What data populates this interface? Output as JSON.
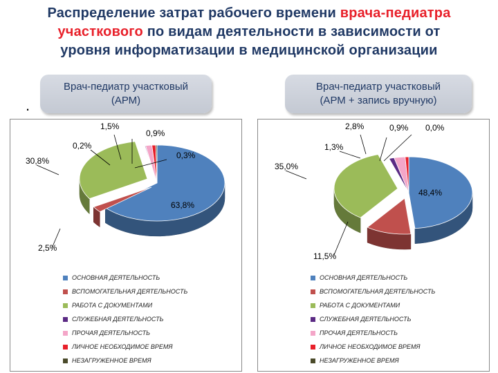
{
  "title": {
    "part1": "Распределение затрат рабочего времени ",
    "highlight1": "врача-педиатра",
    "highlight2": "участкового",
    "part2": " по видам деятельности в зависимости от",
    "line3": "уровня информатизации в медицинской организации"
  },
  "side_mark": ".",
  "colors": {
    "main": "#4f81bd",
    "aux": "#c0504d",
    "docs": "#9bbb59",
    "service": "#5b2a84",
    "other": "#f4a6c8",
    "personal": "#e8202a",
    "idle": "#4a4a2a"
  },
  "legend": [
    {
      "key": "main",
      "label": "ОСНОВНАЯ ДЕЯТЕЛЬНОСТЬ"
    },
    {
      "key": "aux",
      "label": "ВСПОМОГАТЕЛЬНАЯ ДЕЯТЕЛЬНОСТЬ"
    },
    {
      "key": "docs",
      "label": "РАБОТА С ДОКУМЕНТАМИ"
    },
    {
      "key": "service",
      "label": "СЛУЖЕБНАЯ ДЕЯТЕЛЬНОСТЬ"
    },
    {
      "key": "other",
      "label": "ПРОЧАЯ ДЕЯТЕЛЬНОСТЬ"
    },
    {
      "key": "personal",
      "label": "ЛИЧНОЕ НЕОБХОДИМОЕ ВРЕМЯ"
    },
    {
      "key": "idle",
      "label": "НЕЗАГРУЖЕННОЕ ВРЕМЯ"
    }
  ],
  "chart_data": [
    {
      "type": "pie",
      "title": "Врач-педиатр участковый\n(АРМ)",
      "categories": [
        "ОСНОВНАЯ ДЕЯТЕЛЬНОСТЬ",
        "ВСПОМОГАТЕЛЬНАЯ ДЕЯТЕЛЬНОСТЬ",
        "РАБОТА С ДОКУМЕНТАМИ",
        "СЛУЖЕБНАЯ ДЕЯТЕЛЬНОСТЬ",
        "ПРОЧАЯ ДЕЯТЕЛЬНОСТЬ",
        "ЛИЧНОЕ НЕОБХОДИМОЕ ВРЕМЯ",
        "НЕЗАГРУЖЕННОЕ ВРЕМЯ"
      ],
      "values": [
        63.8,
        2.5,
        30.8,
        0.2,
        1.5,
        0.9,
        0.3
      ],
      "labels": [
        "63,8%",
        "2,5%",
        "30,8%",
        "0,2%",
        "1,5%",
        "0,9%",
        "0,3%"
      ],
      "legend_position": "bottom"
    },
    {
      "type": "pie",
      "title": "Врач-педиатр участковый\n(АРМ + запись вручную)",
      "categories": [
        "ОСНОВНАЯ ДЕЯТЕЛЬНОСТЬ",
        "ВСПОМОГАТЕЛЬНАЯ ДЕЯТЕЛЬНОСТЬ",
        "РАБОТА С ДОКУМЕНТАМИ",
        "СЛУЖЕБНАЯ ДЕЯТЕЛЬНОСТЬ",
        "ПРОЧАЯ ДЕЯТЕЛЬНОСТЬ",
        "ЛИЧНОЕ НЕОБХОДИМОЕ ВРЕМЯ",
        "НЕЗАГРУЖЕННОЕ ВРЕМЯ"
      ],
      "values": [
        48.4,
        11.5,
        35.0,
        1.3,
        2.8,
        0.9,
        0.0
      ],
      "labels": [
        "48,4%",
        "11,5%",
        "35,0%",
        "1,3%",
        "2,8%",
        "0,9%",
        "0,0%"
      ],
      "legend_position": "bottom"
    }
  ]
}
